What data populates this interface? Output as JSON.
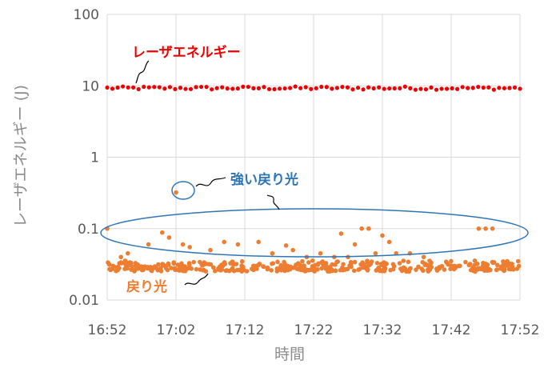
{
  "chart_data": {
    "type": "scatter",
    "xlabel": "時間",
    "ylabel": "レーザエネルギー (J)",
    "x_ticks": [
      "16:52",
      "17:02",
      "17:12",
      "17:22",
      "17:32",
      "17:42",
      "17:52"
    ],
    "xlim": [
      "16:52",
      "17:52"
    ],
    "y_ticks": [
      "0.01",
      "0.1",
      "1",
      "10",
      "100"
    ],
    "ylim": [
      0.01,
      100
    ],
    "yscale": "log",
    "grid": true,
    "colors": {
      "laser": "#ee0000",
      "return": "#ed7d31",
      "annotation_blue": "#2e75b6",
      "grid": "#d9d9d9"
    },
    "series": [
      {
        "name": "レーザエネルギー",
        "color": "#ee0000",
        "approx_value": 9.2,
        "range": [
          8.8,
          9.8
        ],
        "x_range": [
          "16:52",
          "17:52"
        ],
        "description": "Dense, nearly constant row of points throughout"
      },
      {
        "name": "戻り光",
        "color": "#ed7d31",
        "baseline": {
          "approx_value": 0.029,
          "range": [
            0.025,
            0.035
          ],
          "x_range": [
            "16:52",
            "17:52"
          ]
        },
        "outliers": [
          [
            "16:52",
            0.1
          ],
          [
            "16:54",
            0.04
          ],
          [
            "16:55",
            0.045
          ],
          [
            "16:58",
            0.06
          ],
          [
            "17:00",
            0.088
          ],
          [
            "17:01",
            0.075
          ],
          [
            "17:02",
            0.32
          ],
          [
            "17:03",
            0.06
          ],
          [
            "17:04",
            0.055
          ],
          [
            "17:07",
            0.05
          ],
          [
            "17:09",
            0.065
          ],
          [
            "17:11",
            0.06
          ],
          [
            "17:14",
            0.065
          ],
          [
            "17:16",
            0.045
          ],
          [
            "17:18",
            0.058
          ],
          [
            "17:19",
            0.05
          ],
          [
            "17:21",
            0.04
          ],
          [
            "17:23",
            0.045
          ],
          [
            "17:25",
            0.04
          ],
          [
            "17:26",
            0.085
          ],
          [
            "17:27",
            0.04
          ],
          [
            "17:28",
            0.06
          ],
          [
            "17:29",
            0.1
          ],
          [
            "17:30",
            0.1
          ],
          [
            "17:31",
            0.045
          ],
          [
            "17:32",
            0.08
          ],
          [
            "17:33",
            0.065
          ],
          [
            "17:34",
            0.045
          ],
          [
            "17:36",
            0.045
          ],
          [
            "17:38",
            0.04
          ],
          [
            "17:46",
            0.1
          ],
          [
            "17:47",
            0.1
          ],
          [
            "17:48",
            0.1
          ]
        ]
      }
    ],
    "annotations": [
      {
        "text": "レーザエネルギー",
        "color": "#ee0000"
      },
      {
        "text": "強い戻り光",
        "color": "#2e75b6"
      },
      {
        "text": "戻り光",
        "color": "#ed7d31"
      }
    ]
  }
}
